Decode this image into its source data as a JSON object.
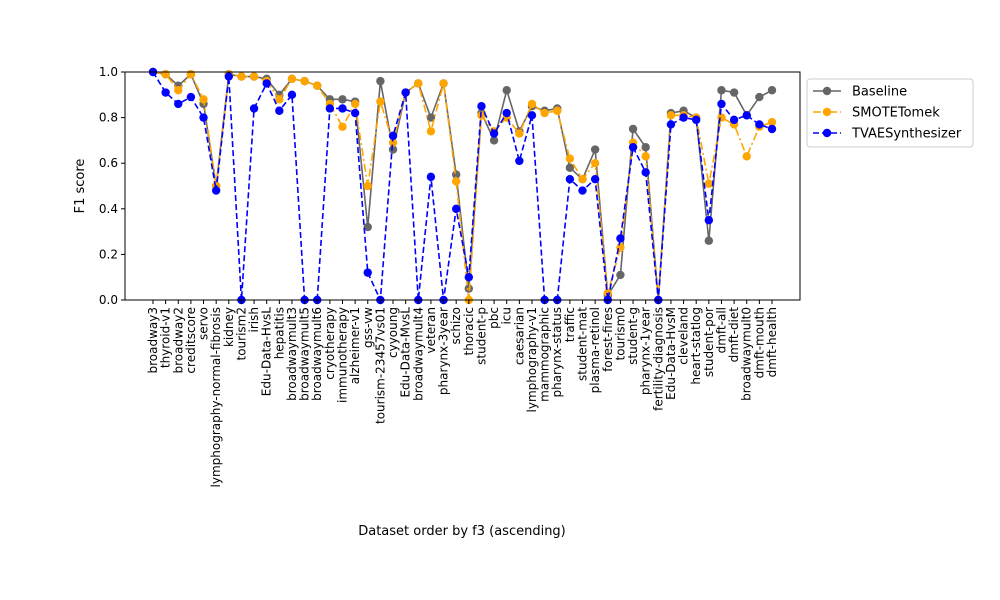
{
  "chart_data": {
    "type": "line",
    "title": "",
    "xlabel": "Dataset order by f3 (ascending)",
    "ylabel": "F1 score",
    "ylim": [
      0.0,
      1.0
    ],
    "yticks": [
      "0.0",
      "0.2",
      "0.4",
      "0.6",
      "0.8",
      "1.0"
    ],
    "grid": false,
    "legend_position": "outside-top-right",
    "categories": [
      "broadway3",
      "thyroid-v1",
      "broadway2",
      "creditscore",
      "servo",
      "lymphography-normal-fibrosis",
      "kidney",
      "tourism2",
      "irish",
      "Edu-Data-HvsL",
      "hepatitis",
      "broadwaymult3",
      "broadwaymult5",
      "broadwaymult6",
      "cryotherapy",
      "immunotherapy",
      "alzheimer-v1",
      "gss-vw",
      "tourism-23457vs01",
      "cyyoung",
      "Edu-Data-MvsL",
      "broadwaymult4",
      "veteran",
      "pharynx-3year",
      "schizo",
      "thoracic",
      "student-p",
      "pbc",
      "icu",
      "caesarian",
      "lymphography-v1",
      "mammographic",
      "pharynx-status",
      "traffic",
      "student-mat",
      "plasma-retinol",
      "forest-fires",
      "tourism0",
      "student-g",
      "pharynx-1year",
      "fertility-diagnosis",
      "Edu-Data-HvsM",
      "cleveland",
      "heart-statlog",
      "student-por",
      "dmft-all",
      "dmft-diet",
      "broadwaymult0",
      "dmft-mouth",
      "dmft-health"
    ],
    "series": [
      {
        "name": "Baseline",
        "color": "#666666",
        "marker_color": "#666666",
        "line_style": "solid",
        "values": [
          1.0,
          0.99,
          0.94,
          0.99,
          0.86,
          0.5,
          0.99,
          0.98,
          0.98,
          0.97,
          0.9,
          0.97,
          0.96,
          0.94,
          0.88,
          0.88,
          0.87,
          0.32,
          0.96,
          0.66,
          0.91,
          0.95,
          0.8,
          0.95,
          0.55,
          0.05,
          0.82,
          0.7,
          0.92,
          0.74,
          0.85,
          0.83,
          0.84,
          0.58,
          0.53,
          0.66,
          0.02,
          0.11,
          0.75,
          0.67,
          0.0,
          0.82,
          0.83,
          0.8,
          0.26,
          0.92,
          0.91,
          0.81,
          0.89,
          0.92
        ]
      },
      {
        "name": "SMOTETomek",
        "color": "#FFA500",
        "marker_color": "#FFA500",
        "line_style": "dashdot",
        "values": [
          1.0,
          0.99,
          0.92,
          0.99,
          0.88,
          0.5,
          0.99,
          0.98,
          0.98,
          0.96,
          0.88,
          0.97,
          0.96,
          0.94,
          0.86,
          0.76,
          0.86,
          0.5,
          0.87,
          0.69,
          0.91,
          0.95,
          0.74,
          0.95,
          0.52,
          0.0,
          0.81,
          0.74,
          0.8,
          0.73,
          0.86,
          0.82,
          0.83,
          0.62,
          0.53,
          0.6,
          0.03,
          0.23,
          0.69,
          0.63,
          0.0,
          0.81,
          0.81,
          0.8,
          0.51,
          0.8,
          0.77,
          0.63,
          0.76,
          0.78
        ]
      },
      {
        "name": "TVAESynthesizer",
        "color": "#0000FF",
        "marker_color": "#0000FF",
        "line_style": "dashed",
        "values": [
          1.0,
          0.91,
          0.86,
          0.89,
          0.8,
          0.48,
          0.98,
          0.0,
          0.84,
          0.95,
          0.83,
          0.9,
          0.0,
          0.0,
          0.84,
          0.84,
          0.82,
          0.12,
          0.0,
          0.72,
          0.91,
          0.0,
          0.54,
          0.0,
          0.4,
          0.1,
          0.85,
          0.73,
          0.82,
          0.61,
          0.81,
          0.0,
          0.0,
          0.53,
          0.48,
          0.53,
          0.0,
          0.27,
          0.67,
          0.56,
          0.0,
          0.77,
          0.8,
          0.79,
          0.35,
          0.86,
          0.79,
          0.81,
          0.77,
          0.75
        ]
      }
    ]
  }
}
